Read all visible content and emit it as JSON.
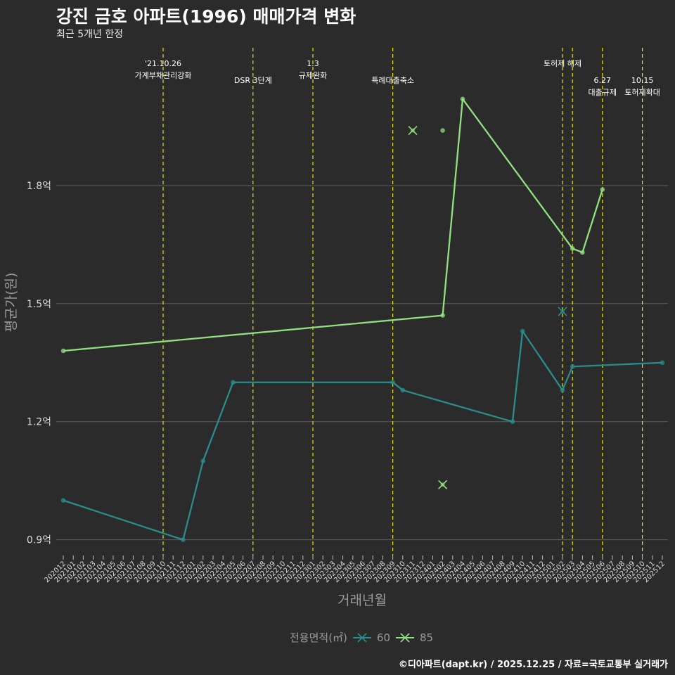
{
  "chart_data": {
    "type": "line",
    "title": "강진 금호 아파트(1996) 매매가격 변화",
    "subtitle": "최근 5개년 한정",
    "xlabel": "거래년월",
    "ylabel": "평균가(원)",
    "caption": "©디아파트(dapt.kr) / 2025.12.25 / 자료=국토교통부 실거래가",
    "legend_title": "전용면적(㎡)",
    "categories": [
      "202012",
      "202101",
      "202102",
      "202103",
      "202104",
      "202105",
      "202106",
      "202107",
      "202108",
      "202109",
      "202110",
      "202111",
      "202112",
      "202201",
      "202202",
      "202203",
      "202204",
      "202205",
      "202206",
      "202207",
      "202208",
      "202209",
      "202210",
      "202211",
      "202212",
      "202301",
      "202302",
      "202303",
      "202304",
      "202305",
      "202306",
      "202307",
      "202308",
      "202309",
      "202310",
      "202311",
      "202312",
      "202401",
      "202402",
      "202403",
      "202404",
      "202405",
      "202406",
      "202407",
      "202408",
      "202409",
      "202410",
      "202411",
      "202412",
      "202501",
      "202502",
      "202503",
      "202504",
      "202505",
      "202506",
      "202507",
      "202508",
      "202509",
      "202510",
      "202511",
      "202512"
    ],
    "ylim": [
      0.86,
      2.15
    ],
    "yticks": [
      0.9,
      1.2,
      1.5,
      1.8
    ],
    "ytick_labels": [
      "0.9억",
      "1.2억",
      "1.5억",
      "1.8억"
    ],
    "series": [
      {
        "name": "60",
        "color": "#2a8c8c",
        "points": [
          [
            "202012",
            1.0
          ],
          [
            "202112",
            0.9
          ],
          [
            "202202",
            1.1
          ],
          [
            "202205",
            1.3
          ],
          [
            "202309",
            1.3
          ],
          [
            "202310",
            1.28
          ],
          [
            "202409",
            1.2
          ],
          [
            "202410",
            1.43
          ],
          [
            "202502",
            1.28
          ],
          [
            "202503",
            1.34
          ],
          [
            "202512",
            1.35
          ]
        ],
        "outliers": [
          [
            "202502",
            1.48
          ]
        ]
      },
      {
        "name": "85",
        "color": "#90e080",
        "points": [
          [
            "202012",
            1.38
          ],
          [
            "202402",
            1.47
          ],
          [
            "202404",
            2.02
          ],
          [
            "202503",
            1.64
          ],
          [
            "202504",
            1.63
          ],
          [
            "202506",
            1.79
          ]
        ],
        "extra_points": [
          [
            "202402",
            1.94
          ]
        ],
        "outliers": [
          [
            "202311",
            1.94
          ],
          [
            "202402",
            1.04
          ]
        ]
      }
    ],
    "events": [
      {
        "month": "202110",
        "label_lines": [
          "'21.10.26",
          "가계부채관리강화"
        ],
        "tier": 1
      },
      {
        "month": "202207",
        "label_lines": [
          "DSR 3단계"
        ],
        "tier": 2
      },
      {
        "month": "202301",
        "label_lines": [
          "1.3",
          "규제완화"
        ],
        "tier": 1
      },
      {
        "month": "202309",
        "label_lines": [
          "특례대출축소"
        ],
        "tier": 2
      },
      {
        "month": "202502",
        "label_lines": [
          "토허제 해제"
        ],
        "tier": 1
      },
      {
        "month": "202503",
        "label_lines": [],
        "tier": 1
      },
      {
        "month": "202506",
        "label_lines": [
          "6.27",
          "대출규제"
        ],
        "tier": 2
      },
      {
        "month": "202510",
        "label_lines": [
          "10.15",
          "토허제확대"
        ],
        "tier": 2
      }
    ]
  }
}
